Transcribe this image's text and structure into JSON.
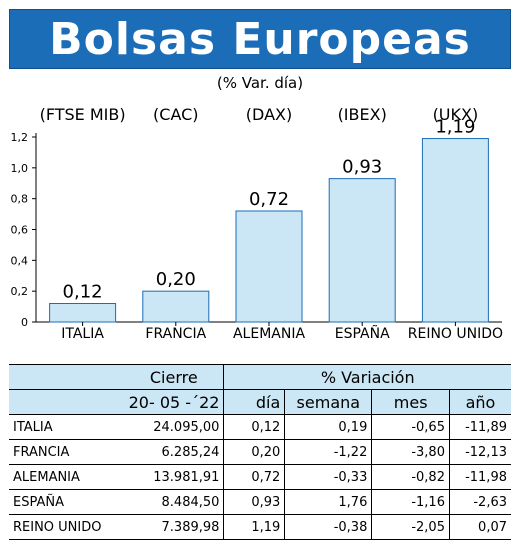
{
  "header": {
    "title": "Bolsas Europeas",
    "subtitle": "(% Var. día)"
  },
  "chart_data": {
    "type": "bar",
    "categories": [
      "ITALIA",
      "FRANCIA",
      "ALEMANIA",
      "ESPAÑA",
      "REINO UNIDO"
    ],
    "indices": [
      "(FTSE MIB)",
      "(CAC)",
      "(DAX)",
      "(IBEX)",
      "(UKX)"
    ],
    "values": [
      0.12,
      0.2,
      0.72,
      0.93,
      1.19
    ],
    "value_labels": [
      "0,12",
      "0,20",
      "0,72",
      "0,93",
      "1,19"
    ],
    "ylim": [
      0,
      1.2
    ],
    "yticks": [
      0,
      0.2,
      0.4,
      0.6,
      0.8,
      1.0,
      1.2
    ],
    "ytick_labels": [
      "0",
      "0,2",
      "0,4",
      "0,6",
      "0,8",
      "1,0",
      "1,2"
    ],
    "bar_color": "#cbe6f4",
    "bar_edge": "#1b6db8"
  },
  "table": {
    "header_cierre": "Cierre",
    "header_variacion": "% Variación",
    "date": "20- 05 -´22",
    "col_dia": "día",
    "col_semana": "semana",
    "col_mes": "mes",
    "col_ano": "año",
    "rows": [
      {
        "pais": "ITALIA",
        "cierre": "24.095,00",
        "dia": "0,12",
        "semana": "0,19",
        "mes": "-0,65",
        "ano": "-11,89"
      },
      {
        "pais": "FRANCIA",
        "cierre": "6.285,24",
        "dia": "0,20",
        "semana": "-1,22",
        "mes": "-3,80",
        "ano": "-12,13"
      },
      {
        "pais": "ALEMANIA",
        "cierre": "13.981,91",
        "dia": "0,72",
        "semana": "-0,33",
        "mes": "-0,82",
        "ano": "-11,98"
      },
      {
        "pais": "ESPAÑA",
        "cierre": "8.484,50",
        "dia": "0,93",
        "semana": "1,76",
        "mes": "-1,16",
        "ano": "-2,63"
      },
      {
        "pais": "REINO UNIDO",
        "cierre": "7.389,98",
        "dia": "1,19",
        "semana": "-0,38",
        "mes": "-2,05",
        "ano": "0,07"
      }
    ]
  },
  "colors": {
    "banner": "#1b6db8",
    "header_fill": "#cbe6f4"
  }
}
